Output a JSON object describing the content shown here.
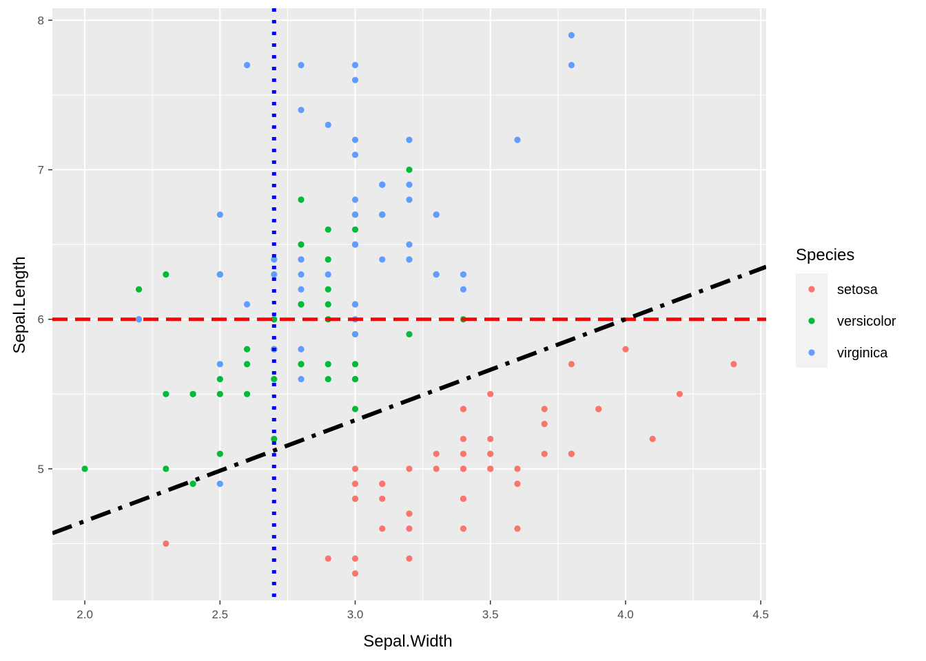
{
  "chart_data": {
    "type": "scatter",
    "xlabel": "Sepal.Width",
    "ylabel": "Sepal.Length",
    "xlim": [
      1.88,
      4.52
    ],
    "ylim": [
      4.12,
      8.08
    ],
    "x_ticks": [
      2.0,
      2.5,
      3.0,
      3.5,
      4.0,
      4.5
    ],
    "x_tick_labels": [
      "2.0",
      "2.5",
      "3.0",
      "3.5",
      "4.0",
      "4.5"
    ],
    "y_ticks": [
      5,
      6,
      7,
      8
    ],
    "y_tick_labels": [
      "5",
      "6",
      "7",
      "8"
    ],
    "grid": true,
    "background": "#ebebeb",
    "legend": {
      "title": "Species",
      "position": "right",
      "entries": [
        {
          "label": "setosa",
          "color": "#F8766D"
        },
        {
          "label": "versicolor",
          "color": "#00BA38"
        },
        {
          "label": "virginica",
          "color": "#619CFF"
        }
      ]
    },
    "reference_lines": [
      {
        "type": "hline",
        "y": 6,
        "color": "#ff0000",
        "style": "dashed"
      },
      {
        "type": "vline",
        "x": 2.7,
        "color": "#0000ff",
        "style": "dotted"
      },
      {
        "type": "abline",
        "intercept": 3.3,
        "slope": 0.675,
        "color": "#000000",
        "style": "dotdash"
      }
    ],
    "series": [
      {
        "name": "setosa",
        "color": "#F8766D",
        "points": [
          [
            3.5,
            5.1
          ],
          [
            3.0,
            4.9
          ],
          [
            3.2,
            4.7
          ],
          [
            3.1,
            4.6
          ],
          [
            3.6,
            5.0
          ],
          [
            3.9,
            5.4
          ],
          [
            3.4,
            4.6
          ],
          [
            3.4,
            5.0
          ],
          [
            2.9,
            4.4
          ],
          [
            3.1,
            4.9
          ],
          [
            3.7,
            5.4
          ],
          [
            3.4,
            4.8
          ],
          [
            3.0,
            4.8
          ],
          [
            3.0,
            4.3
          ],
          [
            4.0,
            5.8
          ],
          [
            4.4,
            5.7
          ],
          [
            3.9,
            5.4
          ],
          [
            3.5,
            5.1
          ],
          [
            3.8,
            5.7
          ],
          [
            3.8,
            5.1
          ],
          [
            3.4,
            5.4
          ],
          [
            3.7,
            5.1
          ],
          [
            3.6,
            4.6
          ],
          [
            3.3,
            5.1
          ],
          [
            3.4,
            4.8
          ],
          [
            3.0,
            5.0
          ],
          [
            3.4,
            5.0
          ],
          [
            3.5,
            5.2
          ],
          [
            3.4,
            5.2
          ],
          [
            3.2,
            4.7
          ],
          [
            3.1,
            4.8
          ],
          [
            3.4,
            5.4
          ],
          [
            4.1,
            5.2
          ],
          [
            4.2,
            5.5
          ],
          [
            3.1,
            4.9
          ],
          [
            3.2,
            5.0
          ],
          [
            3.5,
            5.5
          ],
          [
            3.6,
            4.9
          ],
          [
            3.0,
            4.4
          ],
          [
            3.4,
            5.1
          ],
          [
            3.5,
            5.0
          ],
          [
            2.3,
            4.5
          ],
          [
            3.2,
            4.4
          ],
          [
            3.5,
            5.0
          ],
          [
            3.8,
            5.1
          ],
          [
            3.0,
            4.8
          ],
          [
            3.8,
            5.1
          ],
          [
            3.2,
            4.6
          ],
          [
            3.7,
            5.3
          ],
          [
            3.3,
            5.0
          ]
        ]
      },
      {
        "name": "versicolor",
        "color": "#00BA38",
        "points": [
          [
            3.2,
            7.0
          ],
          [
            3.2,
            6.4
          ],
          [
            3.1,
            6.9
          ],
          [
            2.3,
            5.5
          ],
          [
            2.8,
            6.5
          ],
          [
            2.8,
            5.7
          ],
          [
            3.3,
            6.3
          ],
          [
            2.4,
            4.9
          ],
          [
            2.9,
            6.6
          ],
          [
            2.7,
            5.2
          ],
          [
            2.0,
            5.0
          ],
          [
            3.0,
            5.9
          ],
          [
            2.2,
            6.0
          ],
          [
            2.9,
            6.1
          ],
          [
            2.9,
            5.6
          ],
          [
            3.1,
            6.7
          ],
          [
            3.0,
            5.6
          ],
          [
            2.7,
            5.8
          ],
          [
            2.2,
            6.2
          ],
          [
            2.5,
            5.6
          ],
          [
            3.2,
            5.9
          ],
          [
            2.8,
            6.1
          ],
          [
            2.5,
            6.3
          ],
          [
            2.8,
            6.1
          ],
          [
            2.9,
            6.4
          ],
          [
            3.0,
            6.6
          ],
          [
            2.8,
            6.8
          ],
          [
            3.0,
            6.7
          ],
          [
            2.9,
            6.0
          ],
          [
            2.6,
            5.7
          ],
          [
            2.4,
            5.5
          ],
          [
            2.4,
            5.5
          ],
          [
            2.7,
            5.8
          ],
          [
            2.7,
            6.0
          ],
          [
            3.0,
            5.4
          ],
          [
            3.4,
            6.0
          ],
          [
            3.1,
            6.7
          ],
          [
            2.3,
            6.3
          ],
          [
            3.0,
            5.6
          ],
          [
            2.5,
            5.5
          ],
          [
            2.6,
            5.5
          ],
          [
            3.0,
            6.1
          ],
          [
            2.6,
            5.8
          ],
          [
            2.3,
            5.0
          ],
          [
            2.7,
            5.6
          ],
          [
            3.0,
            5.7
          ],
          [
            2.9,
            5.7
          ],
          [
            2.9,
            6.2
          ],
          [
            2.5,
            5.1
          ],
          [
            2.8,
            5.7
          ]
        ]
      },
      {
        "name": "virginica",
        "color": "#619CFF",
        "points": [
          [
            3.3,
            6.3
          ],
          [
            2.7,
            5.8
          ],
          [
            3.0,
            7.1
          ],
          [
            2.9,
            6.3
          ],
          [
            3.0,
            6.5
          ],
          [
            3.0,
            7.6
          ],
          [
            2.5,
            4.9
          ],
          [
            2.9,
            7.3
          ],
          [
            2.5,
            6.7
          ],
          [
            3.6,
            7.2
          ],
          [
            3.2,
            6.5
          ],
          [
            2.7,
            6.4
          ],
          [
            3.0,
            6.8
          ],
          [
            2.5,
            5.7
          ],
          [
            2.8,
            5.8
          ],
          [
            3.2,
            6.4
          ],
          [
            3.0,
            6.5
          ],
          [
            3.8,
            7.7
          ],
          [
            2.6,
            7.7
          ],
          [
            2.2,
            6.0
          ],
          [
            3.2,
            6.9
          ],
          [
            2.8,
            5.6
          ],
          [
            2.8,
            7.7
          ],
          [
            2.7,
            6.3
          ],
          [
            3.3,
            6.7
          ],
          [
            3.2,
            7.2
          ],
          [
            2.8,
            6.2
          ],
          [
            3.0,
            6.1
          ],
          [
            2.8,
            6.4
          ],
          [
            3.0,
            7.2
          ],
          [
            2.8,
            7.4
          ],
          [
            3.8,
            7.9
          ],
          [
            2.8,
            6.4
          ],
          [
            2.8,
            6.3
          ],
          [
            2.6,
            6.1
          ],
          [
            3.0,
            7.7
          ],
          [
            3.4,
            6.3
          ],
          [
            3.1,
            6.4
          ],
          [
            3.0,
            6.0
          ],
          [
            3.1,
            6.9
          ],
          [
            3.1,
            6.7
          ],
          [
            3.1,
            6.9
          ],
          [
            2.7,
            5.8
          ],
          [
            3.2,
            6.8
          ],
          [
            3.3,
            6.7
          ],
          [
            3.0,
            6.7
          ],
          [
            2.5,
            6.3
          ],
          [
            3.0,
            6.5
          ],
          [
            3.4,
            6.2
          ],
          [
            3.0,
            5.9
          ]
        ]
      }
    ]
  }
}
